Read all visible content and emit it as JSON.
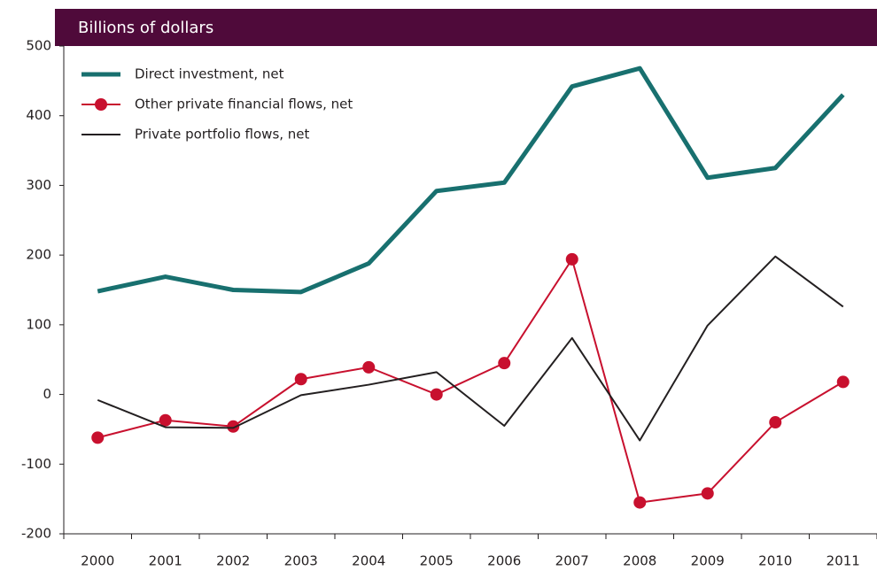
{
  "chart_data": {
    "type": "line",
    "title": "Billions of dollars",
    "categories": [
      "2000",
      "2001",
      "2002",
      "2003",
      "2004",
      "2005",
      "2006",
      "2007",
      "2008",
      "2009",
      "2010",
      "2011"
    ],
    "series": [
      {
        "name": "Direct investment, net",
        "color": "#18706f",
        "values": [
          148,
          169,
          150,
          147,
          188,
          292,
          304,
          442,
          468,
          311,
          325,
          430
        ]
      },
      {
        "name": "Other private financial flows, net",
        "color": "#c8102e",
        "values": [
          -62,
          -37,
          -46,
          22,
          39,
          0,
          45,
          194,
          -155,
          -142,
          -40,
          18
        ]
      },
      {
        "name": "Private portfolio flows, net",
        "color": "#231f20",
        "values": [
          -8,
          -47,
          -48,
          -1,
          14,
          32,
          -45,
          81,
          -66,
          99,
          198,
          126
        ]
      }
    ],
    "ylim": [
      -200,
      500
    ],
    "yticks": [
      -200,
      -100,
      0,
      100,
      200,
      300,
      400,
      500
    ]
  }
}
